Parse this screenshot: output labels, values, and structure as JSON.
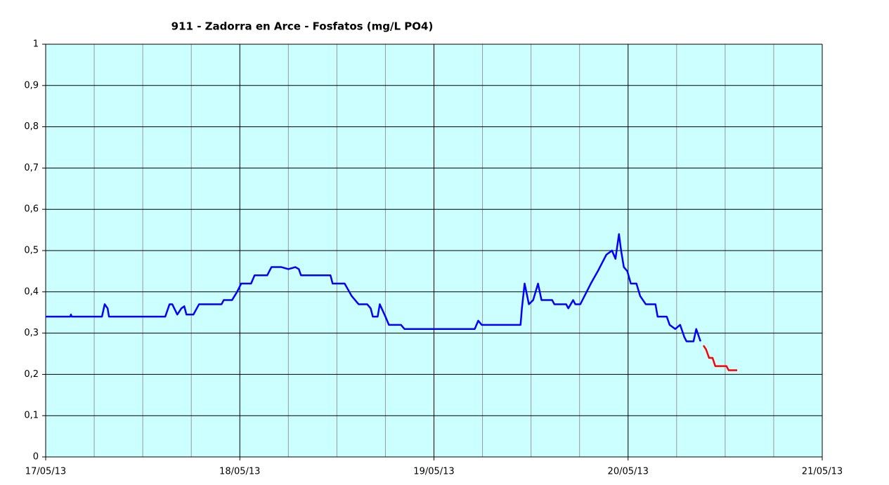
{
  "chart_data": {
    "type": "line",
    "title": "911 - Zadorra en Arce - Fosfatos (mg/L PO4)",
    "xlim": [
      0,
      4
    ],
    "xticks": [
      {
        "value": 0,
        "label": "17/05/13"
      },
      {
        "value": 1,
        "label": "18/05/13"
      },
      {
        "value": 2,
        "label": "19/05/13"
      },
      {
        "value": 3,
        "label": "20/05/13"
      },
      {
        "value": 4,
        "label": "21/05/13"
      }
    ],
    "x_minor_ticks": [
      0.25,
      0.5,
      0.75,
      1.25,
      1.5,
      1.75,
      2.25,
      2.5,
      2.75,
      3.25,
      3.5,
      3.75
    ],
    "ylim": [
      0,
      1
    ],
    "yticks": [
      0,
      {
        "value": 0.1,
        "label": "0,1"
      },
      {
        "value": 0.2,
        "label": "0,2"
      },
      {
        "value": 0.3,
        "label": "0,3"
      },
      {
        "value": 0.4,
        "label": "0,4"
      },
      {
        "value": 0.5,
        "label": "0,5"
      },
      {
        "value": 0.6,
        "label": "0,6"
      },
      {
        "value": 0.7,
        "label": "0,7"
      },
      {
        "value": 0.8,
        "label": "0,8"
      },
      {
        "value": 0.9,
        "label": "0,9"
      },
      1
    ],
    "grid": true,
    "background": "#ccffff",
    "series": [
      {
        "color": "#0000ff",
        "x": [
          0,
          0.127,
          0.13,
          0.134,
          0.29,
          0.304,
          0.319,
          0.326,
          0.616,
          0.638,
          0.652,
          0.678,
          0.699,
          0.714,
          0.725,
          0.761,
          0.79,
          0.906,
          0.917,
          0.96,
          0.986,
          1.007,
          1.058,
          1.076,
          1.141,
          1.163,
          1.214,
          1.25,
          1.286,
          1.304,
          1.315,
          1.467,
          1.478,
          1.54,
          1.576,
          1.612,
          1.656,
          1.674,
          1.685,
          1.71,
          1.721,
          1.75,
          1.768,
          1.83,
          1.848,
          2.21,
          2.228,
          2.246,
          2.446,
          2.453,
          2.467,
          2.489,
          2.511,
          2.536,
          2.554,
          2.609,
          2.62,
          2.681,
          2.692,
          2.717,
          2.728,
          2.754,
          2.808,
          2.844,
          2.888,
          2.917,
          2.935,
          2.953,
          2.964,
          2.978,
          2.996,
          3.014,
          3.043,
          3.062,
          3.091,
          3.141,
          3.152,
          3.199,
          3.214,
          3.243,
          3.268,
          3.29,
          3.301,
          3.337,
          3.351,
          3.373
        ],
        "values": [
          0.34,
          0.34,
          0.345,
          0.34,
          0.34,
          0.37,
          0.36,
          0.34,
          0.34,
          0.37,
          0.37,
          0.345,
          0.36,
          0.365,
          0.345,
          0.345,
          0.37,
          0.37,
          0.38,
          0.38,
          0.4,
          0.42,
          0.42,
          0.44,
          0.44,
          0.46,
          0.46,
          0.455,
          0.46,
          0.455,
          0.44,
          0.44,
          0.42,
          0.42,
          0.39,
          0.37,
          0.37,
          0.36,
          0.34,
          0.34,
          0.37,
          0.34,
          0.32,
          0.32,
          0.31,
          0.31,
          0.33,
          0.32,
          0.32,
          0.36,
          0.42,
          0.37,
          0.38,
          0.42,
          0.38,
          0.38,
          0.37,
          0.37,
          0.36,
          0.38,
          0.37,
          0.37,
          0.42,
          0.45,
          0.49,
          0.5,
          0.48,
          0.54,
          0.5,
          0.46,
          0.45,
          0.42,
          0.42,
          0.39,
          0.37,
          0.37,
          0.34,
          0.34,
          0.32,
          0.31,
          0.32,
          0.29,
          0.28,
          0.28,
          0.31,
          0.28
        ]
      },
      {
        "color": "#ff0000",
        "x": [
          3.388,
          3.402,
          3.417,
          3.435,
          3.449,
          3.507,
          3.518,
          3.562
        ],
        "values": [
          0.27,
          0.26,
          0.24,
          0.24,
          0.22,
          0.22,
          0.21,
          0.21
        ]
      }
    ]
  }
}
